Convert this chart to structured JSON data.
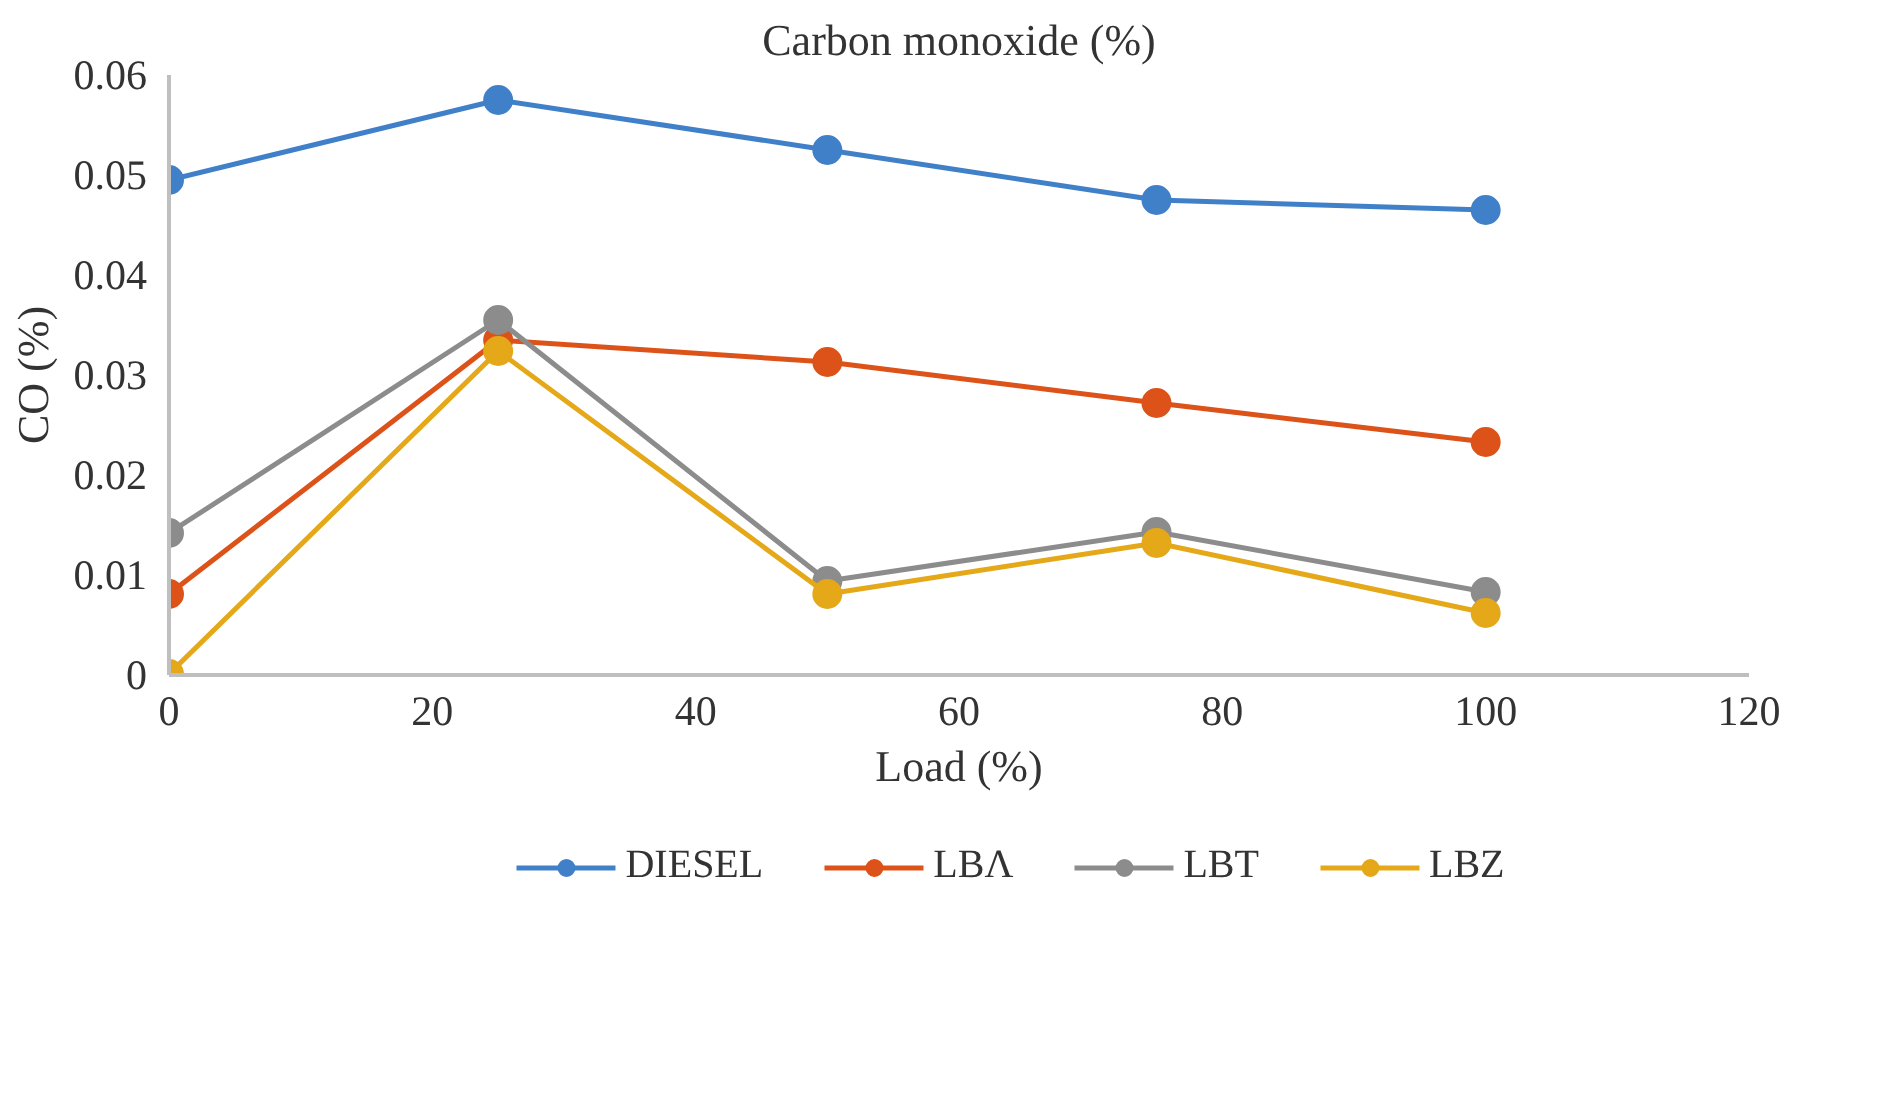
{
  "chart_data": {
    "type": "line",
    "title": "Carbon monoxide (%)",
    "xlabel": "Load (%)",
    "ylabel": "CO (%)",
    "x": [
      0,
      25,
      50,
      75,
      100
    ],
    "series": [
      {
        "name": "DIESEL",
        "color": "#4080c8",
        "values": [
          0.0495,
          0.0575,
          0.0525,
          0.0475,
          0.0465
        ]
      },
      {
        "name": "LBΛ",
        "color": "#dc5218",
        "values": [
          0.0081,
          0.0335,
          0.0313,
          0.0272,
          0.0233
        ]
      },
      {
        "name": "LBT",
        "color": "#8c8c8c",
        "values": [
          0.0142,
          0.0355,
          0.0094,
          0.0143,
          0.0083
        ]
      },
      {
        "name": "LBZ",
        "color": "#e4a818",
        "values": [
          0.0001,
          0.0324,
          0.0081,
          0.0132,
          0.0062
        ]
      }
    ],
    "xlim": [
      0,
      120
    ],
    "xticks": [
      0,
      20,
      40,
      60,
      80,
      100,
      120
    ],
    "ylim": [
      0,
      0.06
    ],
    "yticks": [
      0,
      0.01,
      0.02,
      0.03,
      0.04,
      0.05,
      0.06
    ],
    "grid": false,
    "legend": "bottom",
    "marker": "circle",
    "line_style": "solid"
  }
}
